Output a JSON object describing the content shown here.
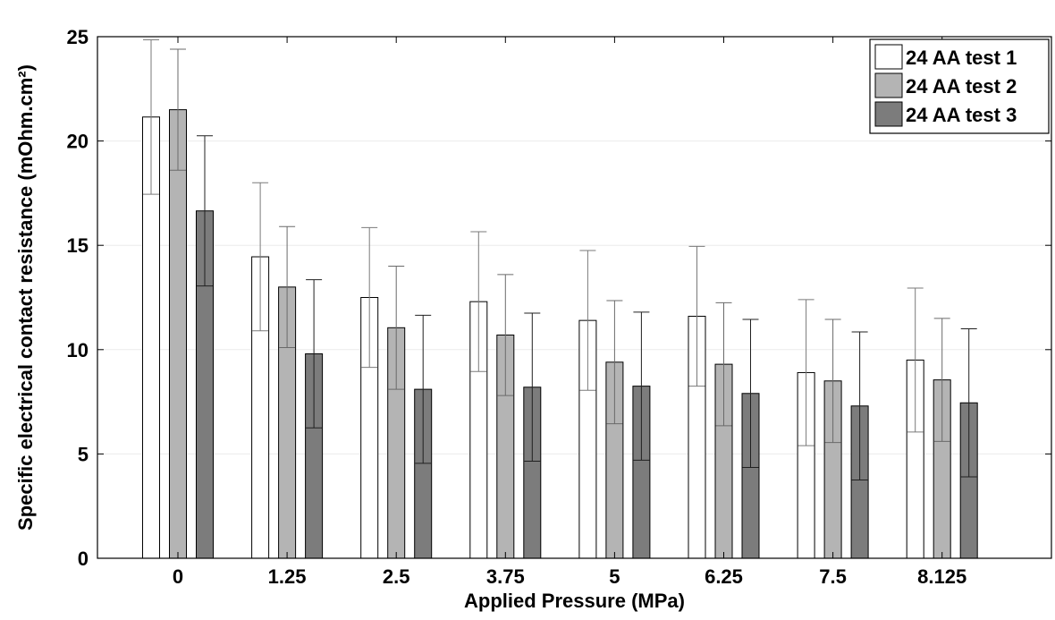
{
  "chart_data": {
    "type": "bar",
    "title": "",
    "xlabel": "Applied Pressure (MPa)",
    "ylabel": "Specific electrical contact resistance (mOhm.cm²)",
    "categories": [
      "0",
      "1.25",
      "2.5",
      "3.75",
      "5",
      "6.25",
      "7.5",
      "8.125"
    ],
    "ylim": [
      0,
      25
    ],
    "yticks": [
      0,
      5,
      10,
      15,
      20,
      25
    ],
    "ytick_labels": [
      "0",
      "5",
      "10",
      "15",
      "20",
      "25"
    ],
    "grid": "horizontal",
    "legend_position": "top-right",
    "series": [
      {
        "name": "24 AA test 1",
        "color": "#ffffff",
        "values": [
          21.15,
          14.45,
          12.5,
          12.3,
          11.4,
          11.6,
          8.9,
          9.5
        ],
        "error": [
          3.7,
          3.55,
          3.35,
          3.35,
          3.35,
          3.35,
          3.5,
          3.45
        ]
      },
      {
        "name": "24 AA test 2",
        "color": "#b4b4b4",
        "values": [
          21.5,
          13.0,
          11.05,
          10.7,
          9.4,
          9.3,
          8.5,
          8.55
        ],
        "error": [
          2.9,
          2.9,
          2.95,
          2.9,
          2.95,
          2.95,
          2.95,
          2.95
        ]
      },
      {
        "name": "24 AA test 3",
        "color": "#7c7c7c",
        "values": [
          16.65,
          9.8,
          8.1,
          8.2,
          8.25,
          7.9,
          7.3,
          7.45
        ],
        "error": [
          3.6,
          3.55,
          3.55,
          3.55,
          3.55,
          3.55,
          3.55,
          3.55
        ]
      }
    ]
  }
}
